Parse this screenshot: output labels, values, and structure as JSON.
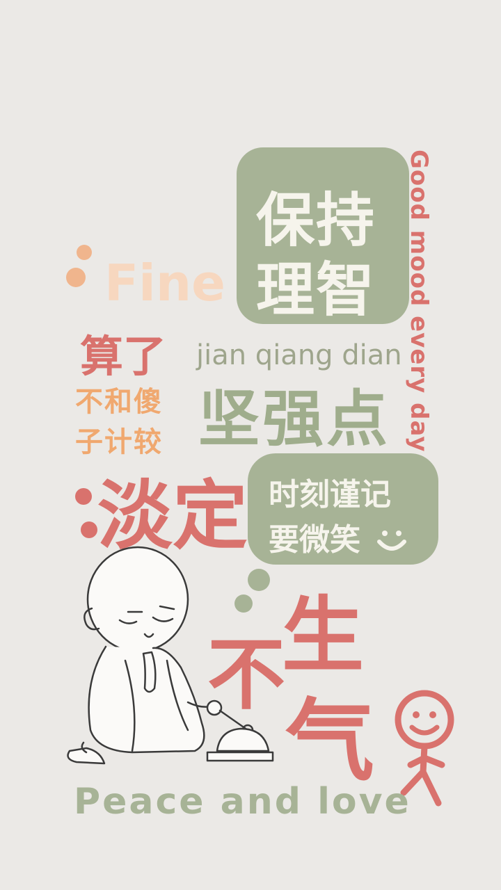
{
  "keep_sane": {
    "line1": "保持",
    "line2": "理智"
  },
  "vertical": "Good mood every day",
  "fine": "Fine",
  "suanle": "算了",
  "budhe": {
    "line1": "不和傻",
    "line2": "子计较"
  },
  "pinyin": "jian qiang dian",
  "jianqiang": "坚强点",
  "danding": "淡定",
  "smile_note": {
    "line1": "时刻谨记",
    "line2": "要微笑"
  },
  "bu": "不",
  "sheng": "生",
  "qi": "气",
  "peace": "Peace and love",
  "colors": {
    "red": "#d9726d",
    "green": "#a7b396",
    "orange": "#f0a86f",
    "peach": "#f7d7bf",
    "bg": "#ebe9e6"
  },
  "icons": [
    "monk-illustration",
    "smiley-stick-figure-icon",
    "smile-face-icon"
  ]
}
